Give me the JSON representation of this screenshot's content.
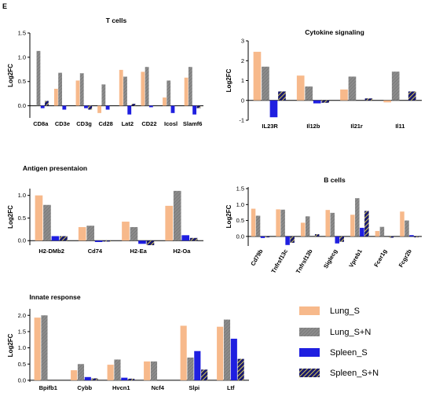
{
  "figure_letter": "E",
  "colors": {
    "lung_s": "#f7b98b",
    "lung_sn": "#8c8c8c",
    "spleen_s": "#1f1fe0",
    "spleen_sn": "#1a1a6e",
    "spleen_sn_stripe": "#d6c95a"
  },
  "legend": [
    {
      "label": "Lung_S",
      "key": "lung_s"
    },
    {
      "label": "Lung_S+N",
      "key": "lung_sn"
    },
    {
      "label": "Spleen_S",
      "key": "spleen_s"
    },
    {
      "label": "Spleen_S+N",
      "key": "spleen_sn"
    }
  ],
  "chart_data": [
    {
      "type": "bar",
      "title": "T cells",
      "ylabel": "Log2FC",
      "ylim": [
        -0.25,
        1.5
      ],
      "yticks": [
        "0.0",
        "0.5",
        "1.0",
        "1.5"
      ],
      "categories": [
        "CD8a",
        "CD3e",
        "CD3g",
        "Cd28",
        "Lat2",
        "CD22",
        "Icosl",
        "Slamf6"
      ],
      "series": [
        {
          "name": "Lung_S",
          "values": [
            0.0,
            0.35,
            0.52,
            -0.15,
            0.74,
            0.7,
            0.17,
            0.58
          ]
        },
        {
          "name": "Lung_S+N",
          "values": [
            1.13,
            0.68,
            0.67,
            0.44,
            0.6,
            0.8,
            0.52,
            0.8
          ]
        },
        {
          "name": "Spleen_S",
          "values": [
            -0.05,
            -0.08,
            -0.05,
            -0.08,
            -0.18,
            -0.03,
            -0.15,
            -0.18
          ]
        },
        {
          "name": "Spleen_S+N",
          "values": [
            0.1,
            0.0,
            -0.08,
            0.0,
            0.04,
            0.0,
            0.0,
            -0.05
          ]
        }
      ]
    },
    {
      "type": "bar",
      "title": "Cytokine signaling",
      "ylabel": "Log2FC",
      "ylim": [
        -1,
        3
      ],
      "yticks": [
        "-1",
        "0",
        "1",
        "2",
        "3"
      ],
      "categories": [
        "IL23R",
        "Il12b",
        "Il21r",
        "Il11"
      ],
      "series": [
        {
          "name": "Lung_S",
          "values": [
            2.45,
            1.25,
            0.55,
            -0.1
          ]
        },
        {
          "name": "Lung_S+N",
          "values": [
            1.7,
            0.7,
            1.2,
            1.45
          ]
        },
        {
          "name": "Spleen_S",
          "values": [
            -0.85,
            -0.15,
            0.0,
            0.0
          ]
        },
        {
          "name": "Spleen_S+N",
          "values": [
            0.45,
            -0.12,
            0.1,
            0.45
          ]
        }
      ]
    },
    {
      "type": "bar",
      "title": "Antigen presentaion",
      "ylabel": "Log2FC",
      "ylim": [
        -0.1,
        1.15
      ],
      "yticks": [
        "0.0",
        "0.5",
        "1.0"
      ],
      "categories": [
        "H2-DMb2",
        "Cd74",
        "H2-Ea",
        "H2-Oa"
      ],
      "series": [
        {
          "name": "Lung_S",
          "values": [
            1.0,
            0.3,
            0.42,
            0.77
          ]
        },
        {
          "name": "Lung_S+N",
          "values": [
            0.79,
            0.33,
            0.3,
            1.1
          ]
        },
        {
          "name": "Spleen_S",
          "values": [
            0.1,
            -0.03,
            -0.07,
            0.12
          ]
        },
        {
          "name": "Spleen_S+N",
          "values": [
            0.1,
            -0.02,
            -0.1,
            0.06
          ]
        }
      ]
    },
    {
      "type": "bar",
      "title": "B cells",
      "ylabel": "Log2FC",
      "ylim": [
        -0.3,
        1.55
      ],
      "yticks": [
        "0.0",
        "0.5",
        "1.0",
        "1.5"
      ],
      "categories": [
        "Cd79b",
        "Tnfrsf13c",
        "Tnfrsf13b",
        "Siglecg",
        "Vpreb1",
        "Fcer1g",
        "Fcgr2b"
      ],
      "series": [
        {
          "name": "Lung_S",
          "values": [
            0.87,
            0.85,
            0.43,
            0.83,
            0.68,
            0.17,
            0.78
          ]
        },
        {
          "name": "Lung_S+N",
          "values": [
            0.65,
            0.84,
            0.63,
            0.74,
            1.2,
            0.3,
            0.5
          ]
        },
        {
          "name": "Spleen_S",
          "values": [
            -0.05,
            -0.27,
            0.0,
            -0.22,
            0.27,
            0.0,
            0.04
          ]
        },
        {
          "name": "Spleen_S+N",
          "values": [
            -0.03,
            -0.2,
            0.07,
            -0.17,
            0.8,
            -0.04,
            -0.03
          ]
        }
      ]
    },
    {
      "type": "bar",
      "title": "Innate response",
      "ylabel": "Log2FC",
      "ylim": [
        -0.05,
        2.2
      ],
      "yticks": [
        "0.0",
        "0.5",
        "1.0",
        "1.5",
        "2.0"
      ],
      "categories": [
        "Bpifb1",
        "Cybb",
        "Hvcn1",
        "Ncf4",
        "Slpi",
        "Ltf"
      ],
      "series": [
        {
          "name": "Lung_S",
          "values": [
            1.93,
            0.31,
            0.48,
            0.58,
            1.68,
            1.65
          ]
        },
        {
          "name": "Lung_S+N",
          "values": [
            2.0,
            0.5,
            0.64,
            0.58,
            0.7,
            1.87
          ]
        },
        {
          "name": "Spleen_S",
          "values": [
            0.0,
            0.1,
            0.08,
            0.0,
            0.9,
            1.28
          ]
        },
        {
          "name": "Spleen_S+N",
          "values": [
            0.0,
            0.06,
            0.05,
            0.0,
            0.33,
            0.66
          ]
        }
      ]
    }
  ]
}
